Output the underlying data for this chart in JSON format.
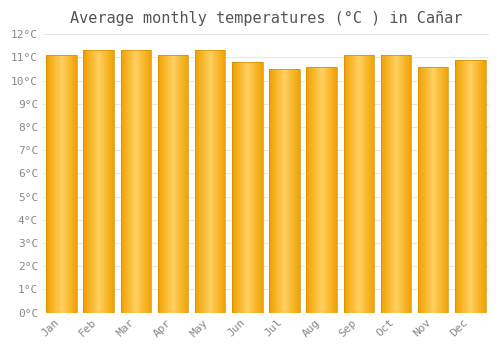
{
  "title": "Average monthly temperatures (°C ) in Cañar",
  "months": [
    "Jan",
    "Feb",
    "Mar",
    "Apr",
    "May",
    "Jun",
    "Jul",
    "Aug",
    "Sep",
    "Oct",
    "Nov",
    "Dec"
  ],
  "values": [
    11.1,
    11.3,
    11.3,
    11.1,
    11.3,
    10.8,
    10.5,
    10.6,
    11.1,
    11.1,
    10.6,
    10.9
  ],
  "bar_color_center": "#FFD060",
  "bar_color_edge": "#F0A000",
  "background_color": "#FFFFFF",
  "grid_color": "#E8E8E8",
  "ylim": [
    0,
    12
  ],
  "ytick_step": 1,
  "title_fontsize": 11,
  "tick_fontsize": 8,
  "bar_width": 0.82
}
